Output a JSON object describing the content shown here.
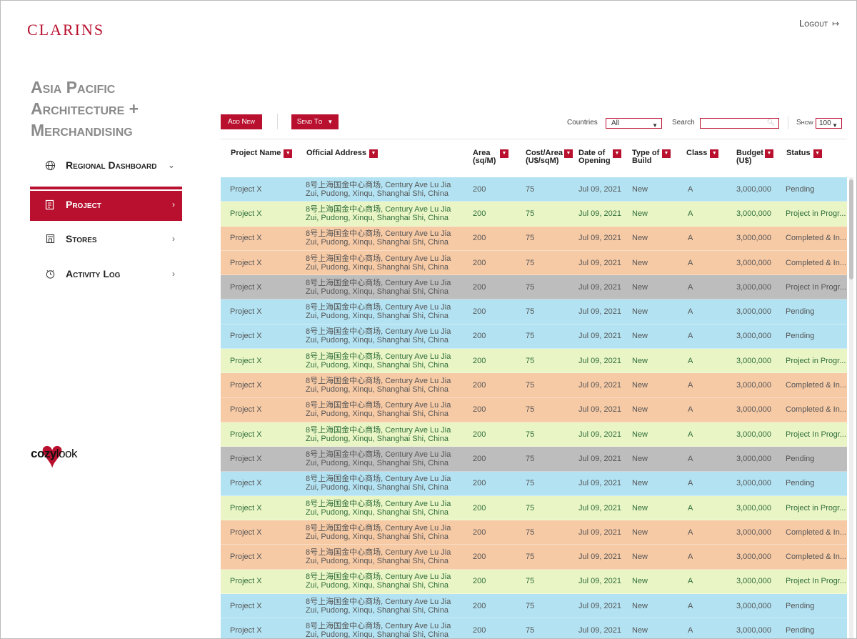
{
  "header": {
    "brand": "CLARINS",
    "logout_label": "Logout",
    "logout_icon": "logout-icon"
  },
  "app_title": "Asia Pacific Architecture + Merchandising",
  "nav": [
    {
      "label": "Regional Dashboard",
      "icon": "globe-icon",
      "chevron": "⌄",
      "active": false
    },
    {
      "label": "Project",
      "icon": "project-icon",
      "chevron": "›",
      "active": true
    },
    {
      "label": "Stores",
      "icon": "store-icon",
      "chevron": "›",
      "active": false
    },
    {
      "label": "Activity Log",
      "icon": "activity-log-icon",
      "chevron": "›",
      "active": false
    }
  ],
  "footer_logo": {
    "strong": "cozy",
    "light": "look"
  },
  "toolbar": {
    "add_new": "Add New",
    "send_to": "Send To",
    "countries_label": "Countries",
    "countries_value": "All",
    "search_label": "Search",
    "search_placeholder": "",
    "show_label": "Show",
    "show_value": "100"
  },
  "table": {
    "columns": [
      "Project Name",
      "Official Address",
      "Area (sq/M)",
      "Cost/Area (U$/sqM)",
      "Date of Opening",
      "Type of Build",
      "Class",
      "Budget (U$)",
      "Status"
    ],
    "rows": [
      {
        "name": "Project X",
        "address": "8号上海国金中心商场, Century Ave Lu Jia Zui, Pudong, Xinqu, Shanghai Shi, China",
        "area": "200",
        "cost": "75",
        "date": "Jul 09, 2021",
        "type": "New",
        "class": "A",
        "budget": "3,000,000",
        "status": "Pending",
        "color": "blue"
      },
      {
        "name": "Project X",
        "address": "8号上海国金中心商场, Century Ave Lu Jia Zui, Pudong, Xinqu, Shanghai Shi, China",
        "area": "200",
        "cost": "75",
        "date": "Jul 09, 2021",
        "type": "New",
        "class": "A",
        "budget": "3,000,000",
        "status": "Project in Progr...",
        "color": "green"
      },
      {
        "name": "Project X",
        "address": "8号上海国金中心商场, Century Ave Lu Jia Zui, Pudong, Xinqu, Shanghai Shi, China",
        "area": "200",
        "cost": "75",
        "date": "Jul 09, 2021",
        "type": "New",
        "class": "A",
        "budget": "3,000,000",
        "status": "Completed & In...",
        "color": "orange"
      },
      {
        "name": "Project X",
        "address": "8号上海国金中心商场, Century Ave Lu Jia Zui, Pudong, Xinqu, Shanghai Shi, China",
        "area": "200",
        "cost": "75",
        "date": "Jul 09, 2021",
        "type": "New",
        "class": "A",
        "budget": "3,000,000",
        "status": "Completed & In...",
        "color": "orange"
      },
      {
        "name": "Project X",
        "address": "8号上海国金中心商场, Century Ave Lu Jia Zui, Pudong, Xinqu, Shanghai Shi, China",
        "area": "200",
        "cost": "75",
        "date": "Jul 09, 2021",
        "type": "New",
        "class": "A",
        "budget": "3,000,000",
        "status": "Project In Progr...",
        "color": "gray"
      },
      {
        "name": "Project X",
        "address": "8号上海国金中心商场, Century Ave Lu Jia Zui, Pudong, Xinqu, Shanghai Shi, China",
        "area": "200",
        "cost": "75",
        "date": "Jul 09, 2021",
        "type": "New",
        "class": "A",
        "budget": "3,000,000",
        "status": "Pending",
        "color": "blue"
      },
      {
        "name": "Project X",
        "address": "8号上海国金中心商场, Century Ave Lu Jia Zui, Pudong, Xinqu, Shanghai Shi, China",
        "area": "200",
        "cost": "75",
        "date": "Jul 09, 2021",
        "type": "New",
        "class": "A",
        "budget": "3,000,000",
        "status": "Pending",
        "color": "blue"
      },
      {
        "name": "Project X",
        "address": "8号上海国金中心商场, Century Ave Lu Jia Zui, Pudong, Xinqu, Shanghai Shi, China",
        "area": "200",
        "cost": "75",
        "date": "Jul 09, 2021",
        "type": "New",
        "class": "A",
        "budget": "3,000,000",
        "status": "Project in Progr...",
        "color": "green"
      },
      {
        "name": "Project X",
        "address": "8号上海国金中心商场, Century Ave Lu Jia Zui, Pudong, Xinqu, Shanghai Shi, China",
        "area": "200",
        "cost": "75",
        "date": "Jul 09, 2021",
        "type": "New",
        "class": "A",
        "budget": "3,000,000",
        "status": "Completed & In...",
        "color": "orange"
      },
      {
        "name": "Project X",
        "address": "8号上海国金中心商场, Century Ave Lu Jia Zui, Pudong, Xinqu, Shanghai Shi, China",
        "area": "200",
        "cost": "75",
        "date": "Jul 09, 2021",
        "type": "New",
        "class": "A",
        "budget": "3,000,000",
        "status": "Completed & In...",
        "color": "orange"
      },
      {
        "name": "Project X",
        "address": "8号上海国金中心商场, Century Ave Lu Jia Zui, Pudong, Xinqu, Shanghai Shi, China",
        "area": "200",
        "cost": "75",
        "date": "Jul 09, 2021",
        "type": "New",
        "class": "A",
        "budget": "3,000,000",
        "status": "Project In Progr...",
        "color": "green"
      },
      {
        "name": "Project X",
        "address": "8号上海国金中心商场, Century Ave Lu Jia Zui, Pudong, Xinqu, Shanghai Shi, China",
        "area": "200",
        "cost": "75",
        "date": "Jul 09, 2021",
        "type": "New",
        "class": "A",
        "budget": "3,000,000",
        "status": "Pending",
        "color": "gray"
      },
      {
        "name": "Project X",
        "address": "8号上海国金中心商场, Century Ave Lu Jia Zui, Pudong, Xinqu, Shanghai Shi, China",
        "area": "200",
        "cost": "75",
        "date": "Jul 09, 2021",
        "type": "New",
        "class": "A",
        "budget": "3,000,000",
        "status": "Pending",
        "color": "blue"
      },
      {
        "name": "Project X",
        "address": "8号上海国金中心商场, Century Ave Lu Jia Zui, Pudong, Xinqu, Shanghai Shi, China",
        "area": "200",
        "cost": "75",
        "date": "Jul 09, 2021",
        "type": "New",
        "class": "A",
        "budget": "3,000,000",
        "status": "Project in Progr...",
        "color": "green"
      },
      {
        "name": "Project X",
        "address": "8号上海国金中心商场, Century Ave Lu Jia Zui, Pudong, Xinqu, Shanghai Shi, China",
        "area": "200",
        "cost": "75",
        "date": "Jul 09, 2021",
        "type": "New",
        "class": "A",
        "budget": "3,000,000",
        "status": "Completed & In...",
        "color": "orange"
      },
      {
        "name": "Project X",
        "address": "8号上海国金中心商场, Century Ave Lu Jia Zui, Pudong, Xinqu, Shanghai Shi, China",
        "area": "200",
        "cost": "75",
        "date": "Jul 09, 2021",
        "type": "New",
        "class": "A",
        "budget": "3,000,000",
        "status": "Completed & In...",
        "color": "orange"
      },
      {
        "name": "Project X",
        "address": "8号上海国金中心商场, Century Ave Lu Jia Zui, Pudong, Xinqu, Shanghai Shi, China",
        "area": "200",
        "cost": "75",
        "date": "Jul 09, 2021",
        "type": "New",
        "class": "A",
        "budget": "3,000,000",
        "status": "Project In Progr...",
        "color": "green"
      },
      {
        "name": "Project X",
        "address": "8号上海国金中心商场, Century Ave Lu Jia Zui, Pudong, Xinqu, Shanghai Shi, China",
        "area": "200",
        "cost": "75",
        "date": "Jul 09, 2021",
        "type": "New",
        "class": "A",
        "budget": "3,000,000",
        "status": "Pending",
        "color": "blue"
      },
      {
        "name": "Project X",
        "address": "8号上海国金中心商场, Century Ave Lu Jia Zui, Pudong, Xinqu, Shanghai Shi, China",
        "area": "200",
        "cost": "75",
        "date": "Jul 09, 2021",
        "type": "New",
        "class": "A",
        "budget": "3,000,000",
        "status": "Pending",
        "color": "blue"
      }
    ]
  },
  "colors": {
    "brand_red": "#b8102e",
    "row_blue": "#b3e3f3",
    "row_green": "#eaf5c5",
    "row_orange": "#f7caa6",
    "row_gray": "#bdbdbd"
  }
}
